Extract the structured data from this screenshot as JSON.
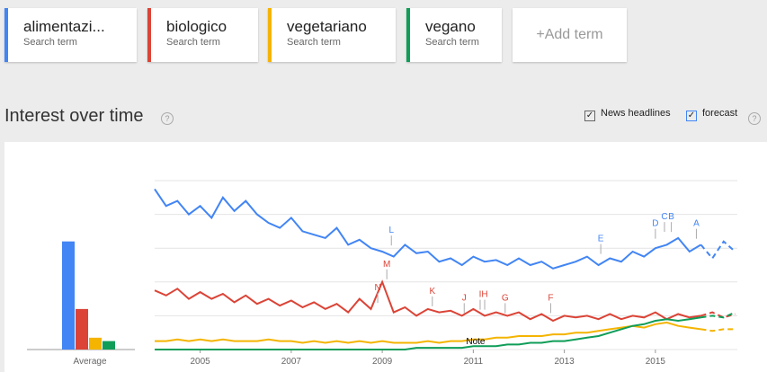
{
  "header": {
    "terms": [
      {
        "name": "alimentazi...",
        "sub": "Search term"
      },
      {
        "name": "biologico",
        "sub": "Search term"
      },
      {
        "name": "vegetariano",
        "sub": "Search term"
      },
      {
        "name": "vegano",
        "sub": "Search term"
      }
    ],
    "add": "+Add term"
  },
  "section": {
    "title": "Interest over time",
    "help": "?",
    "options": [
      {
        "label": "News headlines",
        "checked": true
      },
      {
        "label": "forecast",
        "checked": true
      }
    ]
  },
  "chart_data": {
    "type": "line",
    "average_label": "Average",
    "ylim": [
      0,
      100
    ],
    "gridlines": [
      0,
      20,
      40,
      60,
      80,
      100
    ],
    "xlim": [
      2004,
      2016.8
    ],
    "xticks": [
      2005,
      2007,
      2009,
      2011,
      2013,
      2015
    ],
    "x": [
      2004,
      2004.25,
      2004.5,
      2004.75,
      2005,
      2005.25,
      2005.5,
      2005.75,
      2006,
      2006.25,
      2006.5,
      2006.75,
      2007,
      2007.25,
      2007.5,
      2007.75,
      2008,
      2008.25,
      2008.5,
      2008.75,
      2009,
      2009.25,
      2009.5,
      2009.75,
      2010,
      2010.25,
      2010.5,
      2010.75,
      2011,
      2011.25,
      2011.5,
      2011.75,
      2012,
      2012.25,
      2012.5,
      2012.75,
      2013,
      2013.25,
      2013.5,
      2013.75,
      2014,
      2014.25,
      2014.5,
      2014.75,
      2015,
      2015.25,
      2015.5,
      2015.75,
      2016,
      2016.25,
      2016.5,
      2016.75
    ],
    "series": [
      {
        "name": "alimentazi...",
        "color": "#4285f4",
        "average": 64,
        "values": [
          95,
          85,
          88,
          80,
          85,
          78,
          90,
          82,
          88,
          80,
          75,
          72,
          78,
          70,
          68,
          66,
          72,
          62,
          65,
          60,
          58,
          55,
          62,
          57,
          58,
          52,
          54,
          50,
          55,
          52,
          53,
          50,
          54,
          50,
          52,
          48,
          50,
          52,
          55,
          50,
          54,
          52,
          58,
          55,
          60,
          62,
          66,
          58,
          62,
          null,
          null,
          null
        ],
        "forecast": [
          null,
          null,
          null,
          null,
          null,
          null,
          null,
          null,
          null,
          null,
          null,
          null,
          null,
          null,
          null,
          null,
          null,
          null,
          null,
          null,
          null,
          null,
          null,
          null,
          null,
          null,
          null,
          null,
          null,
          null,
          null,
          null,
          null,
          null,
          null,
          null,
          null,
          null,
          null,
          null,
          null,
          null,
          null,
          null,
          null,
          null,
          null,
          null,
          62,
          54,
          64,
          58
        ]
      },
      {
        "name": "biologico",
        "color": "#db4437",
        "average": 24,
        "values": [
          35,
          32,
          36,
          30,
          34,
          30,
          33,
          28,
          32,
          27,
          30,
          26,
          29,
          25,
          28,
          24,
          27,
          22,
          30,
          24,
          40,
          22,
          25,
          20,
          24,
          22,
          23,
          20,
          24,
          20,
          22,
          20,
          22,
          18,
          21,
          17,
          20,
          19,
          20,
          18,
          21,
          18,
          20,
          19,
          22,
          18,
          21,
          19,
          20,
          null,
          null,
          null
        ],
        "forecast": [
          null,
          null,
          null,
          null,
          null,
          null,
          null,
          null,
          null,
          null,
          null,
          null,
          null,
          null,
          null,
          null,
          null,
          null,
          null,
          null,
          null,
          null,
          null,
          null,
          null,
          null,
          null,
          null,
          null,
          null,
          null,
          null,
          null,
          null,
          null,
          null,
          null,
          null,
          null,
          null,
          null,
          null,
          null,
          null,
          null,
          null,
          null,
          null,
          20,
          22,
          19,
          21
        ]
      },
      {
        "name": "vegetariano",
        "color": "#f4b400",
        "average": 7,
        "values": [
          5,
          5,
          6,
          5,
          6,
          5,
          6,
          5,
          5,
          5,
          6,
          5,
          5,
          4,
          5,
          4,
          5,
          4,
          5,
          4,
          5,
          4,
          4,
          4,
          5,
          4,
          5,
          5,
          6,
          6,
          7,
          7,
          8,
          8,
          8,
          9,
          9,
          10,
          10,
          11,
          12,
          13,
          14,
          13,
          15,
          16,
          14,
          13,
          12,
          null,
          null,
          null
        ],
        "forecast": [
          null,
          null,
          null,
          null,
          null,
          null,
          null,
          null,
          null,
          null,
          null,
          null,
          null,
          null,
          null,
          null,
          null,
          null,
          null,
          null,
          null,
          null,
          null,
          null,
          null,
          null,
          null,
          null,
          null,
          null,
          null,
          null,
          null,
          null,
          null,
          null,
          null,
          null,
          null,
          null,
          null,
          null,
          null,
          null,
          null,
          null,
          null,
          null,
          12,
          11,
          12,
          12
        ]
      },
      {
        "name": "vegano",
        "color": "#0f9d58",
        "average": 5,
        "values": [
          0,
          0,
          0,
          0,
          0,
          0,
          0,
          0,
          0,
          0,
          0,
          0,
          0,
          0,
          0,
          0,
          0,
          0,
          0,
          0,
          0,
          0,
          0,
          1,
          1,
          1,
          1,
          1,
          2,
          2,
          2,
          3,
          3,
          4,
          4,
          5,
          5,
          6,
          7,
          8,
          10,
          12,
          14,
          15,
          17,
          18,
          17,
          18,
          19,
          null,
          null,
          null
        ],
        "forecast": [
          null,
          null,
          null,
          null,
          null,
          null,
          null,
          null,
          null,
          null,
          null,
          null,
          null,
          null,
          null,
          null,
          null,
          null,
          null,
          null,
          null,
          null,
          null,
          null,
          null,
          null,
          null,
          null,
          null,
          null,
          null,
          null,
          null,
          null,
          null,
          null,
          null,
          null,
          null,
          null,
          null,
          null,
          null,
          null,
          null,
          null,
          null,
          null,
          19,
          20,
          19,
          22
        ]
      }
    ],
    "annotations": [
      {
        "label": "L",
        "x": 2009.2,
        "value": 60,
        "color": "#4285f4"
      },
      {
        "label": "M",
        "x": 2009.1,
        "value": 40,
        "color": "#db4437"
      },
      {
        "label": "N",
        "x": 2008.9,
        "value": 26,
        "color": "#db4437"
      },
      {
        "label": "K",
        "x": 2010.1,
        "value": 24,
        "color": "#db4437"
      },
      {
        "label": "J",
        "x": 2010.8,
        "value": 20,
        "color": "#db4437"
      },
      {
        "label": "I",
        "x": 2011.15,
        "value": 22,
        "color": "#db4437"
      },
      {
        "label": "H",
        "x": 2011.25,
        "value": 22,
        "color": "#db4437"
      },
      {
        "label": "G",
        "x": 2011.7,
        "value": 20,
        "color": "#db4437"
      },
      {
        "label": "F",
        "x": 2012.7,
        "value": 20,
        "color": "#db4437"
      },
      {
        "label": "E",
        "x": 2013.8,
        "value": 55,
        "color": "#4285f4"
      },
      {
        "label": "D",
        "x": 2015.0,
        "value": 64,
        "color": "#4285f4"
      },
      {
        "label": "C",
        "x": 2015.2,
        "value": 68,
        "color": "#4285f4"
      },
      {
        "label": "B",
        "x": 2015.35,
        "value": 68,
        "color": "#4285f4"
      },
      {
        "label": "A",
        "x": 2015.9,
        "value": 64,
        "color": "#4285f4"
      }
    ],
    "note": {
      "label": "Note",
      "x": 2011.05
    }
  }
}
